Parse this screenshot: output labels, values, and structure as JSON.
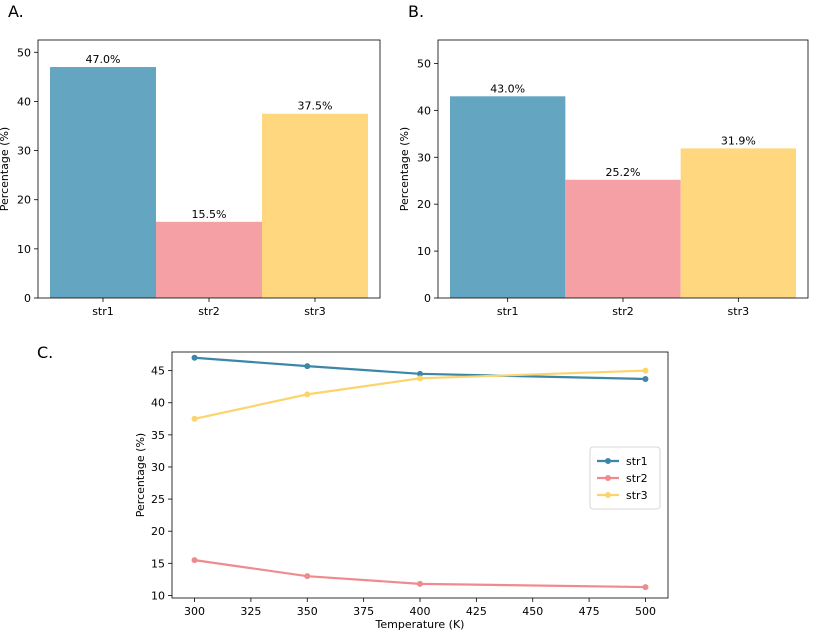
{
  "chart_data": [
    {
      "panel": "A.",
      "type": "bar",
      "title": "",
      "xlabel": "",
      "ylabel": "Percentage (%)",
      "categories": [
        "str1",
        "str2",
        "str3"
      ],
      "values": [
        47.0,
        15.5,
        37.5
      ],
      "value_labels": [
        "47.0%",
        "15.5%",
        "37.5%"
      ],
      "colors": [
        "#64a6c1",
        "#f4a0a4",
        "#ffd77e"
      ],
      "ylim": [
        0,
        52.5
      ],
      "yticks": [
        0,
        10,
        20,
        30,
        40,
        50
      ],
      "grid": false,
      "legend": "none"
    },
    {
      "panel": "B.",
      "type": "bar",
      "title": "",
      "xlabel": "",
      "ylabel": "Percentage (%)",
      "categories": [
        "str1",
        "str2",
        "str3"
      ],
      "values": [
        43.0,
        25.2,
        31.9
      ],
      "value_labels": [
        "43.0%",
        "25.2%",
        "31.9%"
      ],
      "colors": [
        "#64a6c1",
        "#f4a0a4",
        "#ffd77e"
      ],
      "ylim": [
        0,
        55
      ],
      "yticks": [
        0,
        10,
        20,
        30,
        40,
        50
      ],
      "grid": false,
      "legend": "none"
    },
    {
      "panel": "C.",
      "type": "line",
      "title": "",
      "xlabel": "Temperature (K)",
      "ylabel": "Percentage (%)",
      "x": [
        300,
        350,
        400,
        500
      ],
      "series": [
        {
          "name": "str1",
          "values": [
            47.0,
            45.7,
            44.5,
            43.7
          ],
          "color": "#3c87a8"
        },
        {
          "name": "str2",
          "values": [
            15.5,
            13.0,
            11.8,
            11.3
          ],
          "color": "#ef8b8e"
        },
        {
          "name": "str3",
          "values": [
            37.5,
            41.3,
            43.8,
            45.0
          ],
          "color": "#fcd46e"
        }
      ],
      "xlim": [
        290,
        510
      ],
      "ylim": [
        9.6,
        47.9
      ],
      "xticks": [
        300,
        325,
        350,
        375,
        400,
        425,
        450,
        475,
        500
      ],
      "yticks": [
        10,
        15,
        20,
        25,
        30,
        35,
        40,
        45
      ],
      "grid": false,
      "legend": "center-right"
    }
  ]
}
